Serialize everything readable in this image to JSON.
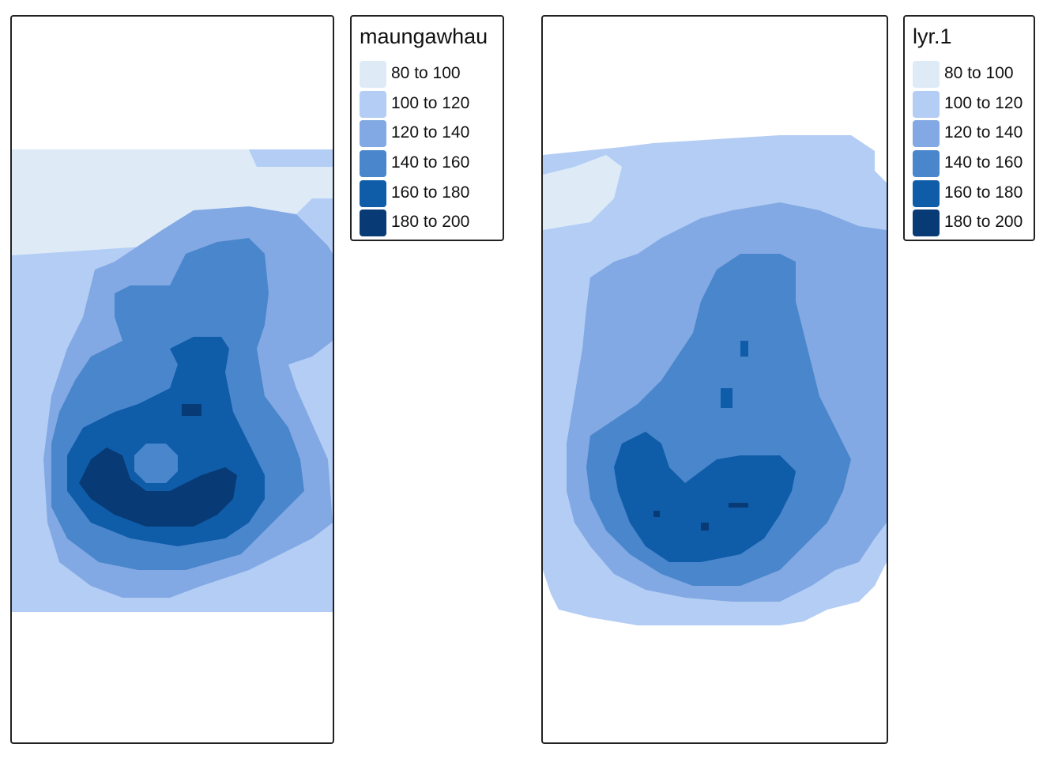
{
  "classes": [
    {
      "label": "80 to 100",
      "color": "#deebf7"
    },
    {
      "label": "100 to 120",
      "color": "#b3cdf5"
    },
    {
      "label": "120 to 140",
      "color": "#82a9e3"
    },
    {
      "label": "140 to 160",
      "color": "#4a86cc"
    },
    {
      "label": "160 to 180",
      "color": "#0f5ca8"
    },
    {
      "label": "180 to 200",
      "color": "#083a75"
    }
  ],
  "maps": [
    {
      "legend_title": "maungawhau"
    },
    {
      "legend_title": "lyr.1"
    }
  ]
}
